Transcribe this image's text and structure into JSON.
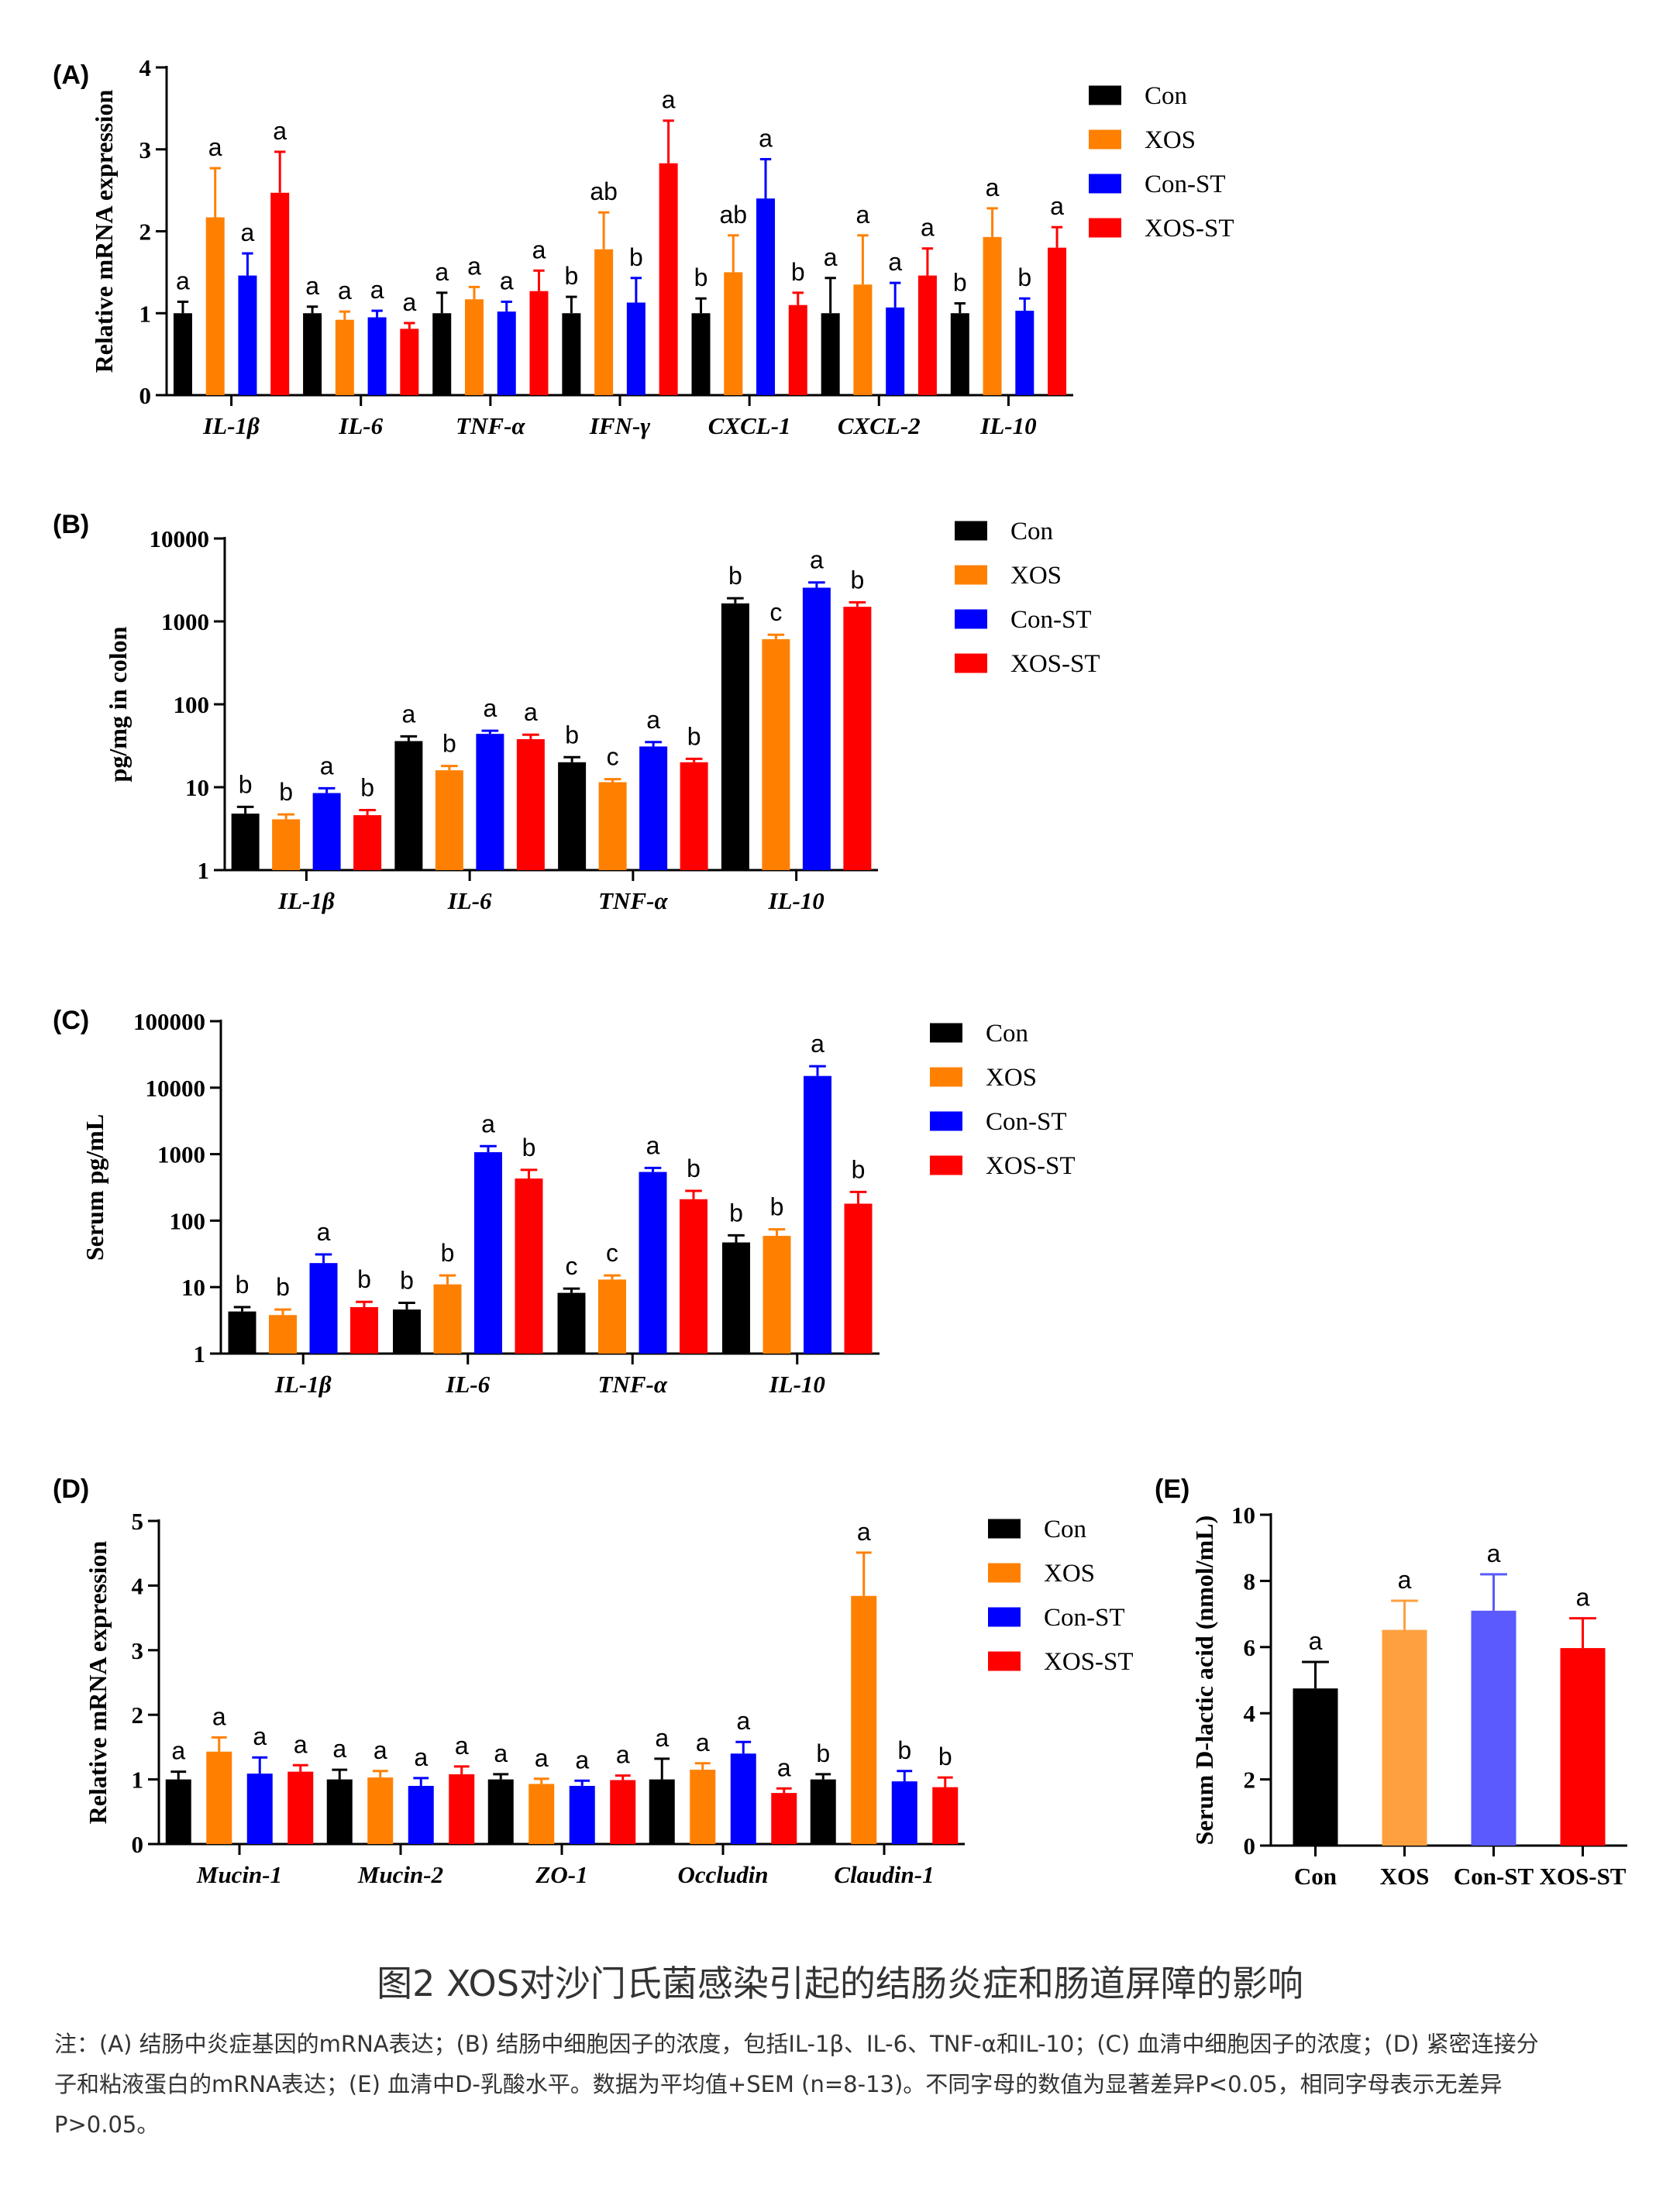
{
  "figure": {
    "title": "图2 XOS对沙门氏菌感染引起的结肠炎症和肠道屏障的影响",
    "note_lines": [
      "注：(A) 结肠中炎症基因的mRNA表达；(B) 结肠中细胞因子的浓度，包括IL-1β、IL-6、TNF-α和IL-10；(C) 血清中细胞因子的浓度；(D) 紧密连接分",
      "子和粘液蛋白的mRNA表达；(E) 血清中D-乳酸水平。数据为平均值+SEM (n=8-13)。不同字母的数值为显著差异P<0.05，相同字母表示无差异",
      "P>0.05。"
    ]
  },
  "colors": {
    "Con": "#000000",
    "XOS": "#ff8000",
    "Con-ST": "#0000ff",
    "XOS-ST": "#ff0000"
  },
  "chart_data": [
    {
      "panel": "(A)",
      "type": "bar",
      "scale": "linear",
      "ylabel": "Relative  mRNA expression",
      "ylim": [
        0,
        4
      ],
      "yticks": [
        0,
        1,
        2,
        3,
        4
      ],
      "categories": [
        "IL-1β",
        "IL-6",
        "TNF-α",
        "IFN-γ",
        "CXCL-1",
        "CXCL-2",
        "IL-10"
      ],
      "italic_categories": true,
      "legend": "top-right",
      "series": [
        {
          "name": "Con",
          "values": [
            1.0,
            1.0,
            1.0,
            1.0,
            1.0,
            1.0,
            1.0
          ],
          "errors": [
            0.14,
            0.08,
            0.25,
            0.2,
            0.18,
            0.43,
            0.12
          ],
          "letters": [
            "a",
            "a",
            "a",
            "b",
            "b",
            "a",
            "b"
          ]
        },
        {
          "name": "XOS",
          "values": [
            2.17,
            0.92,
            1.17,
            1.78,
            1.5,
            1.35,
            1.93
          ],
          "errors": [
            0.6,
            0.1,
            0.15,
            0.45,
            0.45,
            0.6,
            0.35
          ],
          "letters": [
            "a",
            "a",
            "a",
            "ab",
            "ab",
            "a",
            "a"
          ]
        },
        {
          "name": "Con-ST",
          "values": [
            1.46,
            0.95,
            1.02,
            1.13,
            2.4,
            1.07,
            1.03
          ],
          "errors": [
            0.27,
            0.08,
            0.12,
            0.3,
            0.48,
            0.3,
            0.15
          ],
          "letters": [
            "a",
            "a",
            "a",
            "b",
            "a",
            "a",
            "b"
          ]
        },
        {
          "name": "XOS-ST",
          "values": [
            2.47,
            0.81,
            1.27,
            2.83,
            1.1,
            1.46,
            1.8
          ],
          "errors": [
            0.5,
            0.07,
            0.25,
            0.52,
            0.15,
            0.33,
            0.25
          ],
          "letters": [
            "a",
            "a",
            "a",
            "a",
            "b",
            "a",
            "a"
          ]
        }
      ]
    },
    {
      "panel": "(B)",
      "type": "bar",
      "scale": "log",
      "ylabel": "pg/mg in colon",
      "ylim": [
        1,
        10000
      ],
      "yticks": [
        1,
        10,
        100,
        1000,
        10000
      ],
      "ytick_labels": [
        "1",
        "10",
        "100",
        "1000",
        "10000"
      ],
      "categories": [
        "IL-1β",
        "IL-6",
        "TNF-α",
        "IL-10"
      ],
      "italic_categories": true,
      "legend": "top-right",
      "series": [
        {
          "name": "Con",
          "values": [
            4.8,
            36,
            20,
            1650
          ],
          "errors": [
            1.0,
            5,
            3,
            250
          ],
          "letters": [
            "b",
            "a",
            "b",
            "b"
          ]
        },
        {
          "name": "XOS",
          "values": [
            4.1,
            16,
            11.5,
            610
          ],
          "errors": [
            0.6,
            2,
            1,
            80
          ],
          "letters": [
            "b",
            "b",
            "c",
            "c"
          ]
        },
        {
          "name": "Con-ST",
          "values": [
            8.5,
            44,
            31,
            2550
          ],
          "errors": [
            1.2,
            4,
            4,
            400
          ],
          "letters": [
            "a",
            "a",
            "a",
            "a"
          ]
        },
        {
          "name": "XOS-ST",
          "values": [
            4.6,
            38,
            20,
            1500
          ],
          "errors": [
            0.7,
            5,
            2,
            200
          ],
          "letters": [
            "b",
            "a",
            "b",
            "b"
          ]
        }
      ]
    },
    {
      "panel": "(C)",
      "type": "bar",
      "scale": "log",
      "ylabel": "Serum pg/mL",
      "ylim": [
        1,
        100000
      ],
      "yticks": [
        1,
        10,
        100,
        1000,
        10000,
        100000
      ],
      "ytick_labels": [
        "1",
        "10",
        "100",
        "1000",
        "10000",
        "100000"
      ],
      "categories": [
        "IL-1β",
        "IL-6",
        "TNF-α",
        "IL-10"
      ],
      "italic_categories": true,
      "legend": "top-right",
      "series": [
        {
          "name": "Con",
          "values": [
            4.3,
            4.6,
            8.2,
            47
          ],
          "errors": [
            0.7,
            1.2,
            1.3,
            13
          ],
          "letters": [
            "b",
            "b",
            "c",
            "b"
          ]
        },
        {
          "name": "XOS",
          "values": [
            3.8,
            11,
            13,
            59
          ],
          "errors": [
            0.8,
            4,
            2,
            15
          ],
          "letters": [
            "b",
            "b",
            "c",
            "b"
          ]
        },
        {
          "name": "Con-ST",
          "values": [
            23,
            1070,
            540,
            15000
          ],
          "errors": [
            8,
            250,
            80,
            6000
          ],
          "letters": [
            "a",
            "a",
            "a",
            "a"
          ]
        },
        {
          "name": "XOS-ST",
          "values": [
            5.0,
            430,
            210,
            180
          ],
          "errors": [
            1.0,
            150,
            70,
            90
          ],
          "letters": [
            "b",
            "b",
            "b",
            "b"
          ]
        }
      ]
    },
    {
      "panel": "(D)",
      "type": "bar",
      "scale": "linear",
      "ylabel": "Relative mRNA  expression",
      "ylim": [
        0,
        5
      ],
      "yticks": [
        0,
        1,
        2,
        3,
        4,
        5
      ],
      "categories": [
        "Mucin-1",
        "Mucin-2",
        "ZO-1",
        "Occludin",
        "Claudin-1"
      ],
      "italic_categories": true,
      "legend": "top-right",
      "series": [
        {
          "name": "Con",
          "values": [
            1.0,
            1.0,
            1.0,
            1.0,
            1.0
          ],
          "errors": [
            0.12,
            0.15,
            0.08,
            0.32,
            0.08
          ],
          "letters": [
            "a",
            "a",
            "a",
            "a",
            "b"
          ]
        },
        {
          "name": "XOS",
          "values": [
            1.43,
            1.03,
            0.93,
            1.15,
            3.84
          ],
          "errors": [
            0.22,
            0.1,
            0.08,
            0.1,
            0.67
          ],
          "letters": [
            "a",
            "a",
            "a",
            "a",
            "a"
          ]
        },
        {
          "name": "Con-ST",
          "values": [
            1.09,
            0.9,
            0.9,
            1.4,
            0.97
          ],
          "errors": [
            0.25,
            0.12,
            0.08,
            0.18,
            0.16
          ],
          "letters": [
            "a",
            "a",
            "a",
            "a",
            "b"
          ]
        },
        {
          "name": "XOS-ST",
          "values": [
            1.12,
            1.08,
            0.99,
            0.79,
            0.88
          ],
          "errors": [
            0.1,
            0.12,
            0.07,
            0.07,
            0.15
          ],
          "letters": [
            "a",
            "a",
            "a",
            "a",
            "b"
          ]
        }
      ]
    },
    {
      "panel": "(E)",
      "type": "bar",
      "scale": "linear",
      "ylabel": "Serum D-lactic acid (nmol/mL)",
      "ylim": [
        0,
        10
      ],
      "yticks": [
        0,
        2,
        4,
        6,
        8,
        10
      ],
      "categories": [
        "Con",
        "XOS",
        "Con-ST",
        "XOS-ST"
      ],
      "italic_categories": false,
      "legend": "none",
      "values": [
        4.75,
        6.52,
        7.1,
        5.97
      ],
      "errors": [
        0.8,
        0.88,
        1.1,
        0.9
      ],
      "letters": [
        "a",
        "a",
        "a",
        "a"
      ],
      "bar_colors": [
        "#000000",
        "#ffa040",
        "#5a5aff",
        "#ff0000"
      ]
    }
  ]
}
